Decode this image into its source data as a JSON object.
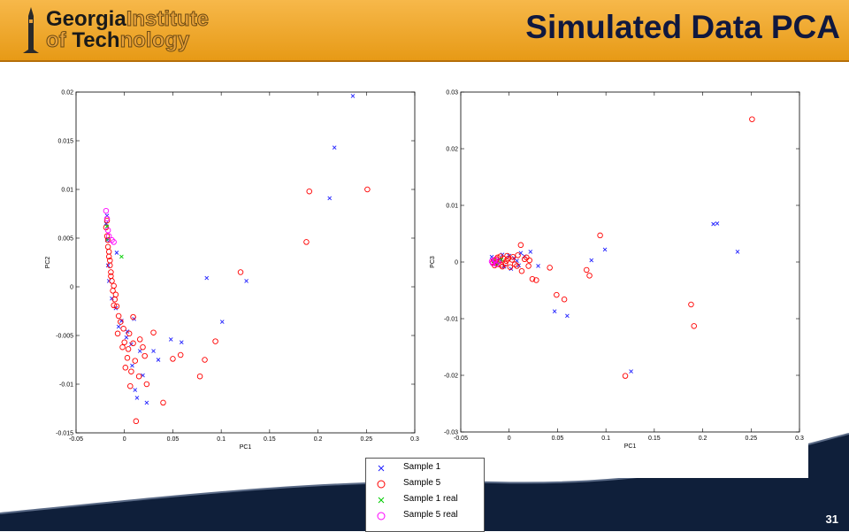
{
  "slide": {
    "title": "Simulated Data PCA",
    "page_number": "31",
    "logo": {
      "line1_strong": "Georgia",
      "line1_light": "Institute",
      "line2_light_a": "of ",
      "line2_strong": "Tech",
      "line2_light_b": "nology"
    }
  },
  "colors": {
    "header": "#f0a830",
    "title": "#10183f",
    "footer": "#0f1f3a",
    "sample1": "#2020ff",
    "sample5": "#ff0000",
    "sample1_real": "#00cc00",
    "sample5_real": "#ff00ff"
  },
  "legend": {
    "items": [
      {
        "label": "Sample 1",
        "marker": "x",
        "color": "#2020ff"
      },
      {
        "label": "Sample 5",
        "marker": "o",
        "color": "#ff0000"
      },
      {
        "label": "Sample 1 real",
        "marker": "x",
        "color": "#00cc00"
      },
      {
        "label": "Sample 5 real",
        "marker": "o",
        "color": "#ff00ff"
      }
    ]
  },
  "chart_data": [
    {
      "type": "scatter",
      "xlabel": "PC1",
      "ylabel": "PC2",
      "xlim": [
        -0.05,
        0.3
      ],
      "ylim": [
        -0.015,
        0.02
      ],
      "xticks": [
        "-0.05",
        "0",
        "0.05",
        "0.1",
        "0.15",
        "0.2",
        "0.25",
        "0.3"
      ],
      "yticks": [
        "-0.015",
        "-0.01",
        "-0.005",
        "0",
        "0.005",
        "0.01",
        "0.015",
        "0.02"
      ],
      "series": [
        {
          "name": "Sample 1",
          "marker": "x",
          "color": "#2020ff",
          "points": [
            [
              0.236,
              0.0196
            ],
            [
              0.217,
              0.0143
            ],
            [
              0.212,
              0.0091
            ],
            [
              0.085,
              0.0009
            ],
            [
              0.126,
              0.0006
            ],
            [
              0.101,
              -0.0036
            ],
            [
              0.048,
              -0.0054
            ],
            [
              0.059,
              -0.0057
            ],
            [
              0.03,
              -0.0066
            ],
            [
              0.035,
              -0.0075
            ],
            [
              0.023,
              -0.0119
            ],
            [
              0.013,
              -0.0114
            ],
            [
              0.011,
              -0.0106
            ],
            [
              0.01,
              -0.0033
            ],
            [
              0.019,
              -0.0091
            ],
            [
              0.003,
              -0.0046
            ],
            [
              -0.003,
              -0.0035
            ],
            [
              -0.009,
              -0.0022
            ],
            [
              -0.013,
              -0.0012
            ],
            [
              -0.016,
              0.0006
            ],
            [
              -0.017,
              0.0022
            ],
            [
              -0.018,
              0.0048
            ],
            [
              -0.019,
              0.0065
            ],
            [
              -0.018,
              0.0073
            ],
            [
              -0.008,
              0.0035
            ],
            [
              -0.006,
              -0.0041
            ],
            [
              0.002,
              -0.0052
            ],
            [
              0.007,
              -0.0059
            ],
            [
              0.016,
              -0.0066
            ],
            [
              0.008,
              -0.0081
            ]
          ]
        },
        {
          "name": "Sample 5",
          "marker": "o",
          "color": "#ff0000",
          "points": [
            [
              0.251,
              0.01
            ],
            [
              0.191,
              0.0098
            ],
            [
              0.188,
              0.0046
            ],
            [
              0.12,
              0.0015
            ],
            [
              0.094,
              -0.0056
            ],
            [
              0.083,
              -0.0075
            ],
            [
              0.078,
              -0.0092
            ],
            [
              0.058,
              -0.007
            ],
            [
              0.05,
              -0.0074
            ],
            [
              0.04,
              -0.0119
            ],
            [
              0.03,
              -0.0047
            ],
            [
              0.023,
              -0.01
            ],
            [
              0.021,
              -0.0071
            ],
            [
              0.019,
              -0.0062
            ],
            [
              0.015,
              -0.0092
            ],
            [
              0.012,
              -0.0138
            ],
            [
              0.011,
              -0.0076
            ],
            [
              0.009,
              -0.0058
            ],
            [
              0.007,
              -0.0087
            ],
            [
              0.006,
              -0.0102
            ],
            [
              0.005,
              -0.0048
            ],
            [
              0.004,
              -0.0064
            ],
            [
              0.003,
              -0.0073
            ],
            [
              0.001,
              -0.0083
            ],
            [
              0.0,
              -0.0057
            ],
            [
              -0.001,
              -0.0043
            ],
            [
              -0.002,
              -0.0062
            ],
            [
              -0.004,
              -0.0036
            ],
            [
              -0.006,
              -0.003
            ],
            [
              -0.008,
              -0.002
            ],
            [
              -0.009,
              -0.0008
            ],
            [
              -0.01,
              -0.0013
            ],
            [
              -0.011,
              0.0001
            ],
            [
              -0.012,
              -0.0004
            ],
            [
              -0.013,
              0.0006
            ],
            [
              -0.014,
              0.0015
            ],
            [
              -0.015,
              0.0022
            ],
            [
              -0.016,
              0.0031
            ],
            [
              -0.017,
              0.0041
            ],
            [
              -0.018,
              0.0052
            ],
            [
              -0.019,
              0.0061
            ],
            [
              -0.018,
              0.0068
            ],
            [
              -0.017,
              0.0048
            ],
            [
              -0.016,
              0.0036
            ],
            [
              -0.015,
              0.0027
            ],
            [
              -0.014,
              0.0011
            ],
            [
              -0.011,
              -0.0019
            ],
            [
              -0.007,
              -0.0048
            ],
            [
              0.009,
              -0.0031
            ],
            [
              0.016,
              -0.0054
            ]
          ]
        },
        {
          "name": "Sample 1 real",
          "marker": "x",
          "color": "#00cc00",
          "points": [
            [
              -0.003,
              0.0031
            ],
            [
              -0.018,
              0.0062
            ],
            [
              -0.017,
              0.0049
            ]
          ]
        },
        {
          "name": "Sample 5 real",
          "marker": "o",
          "color": "#ff00ff",
          "points": [
            [
              -0.019,
              0.0078
            ],
            [
              -0.018,
              0.007
            ],
            [
              -0.017,
              0.0058
            ],
            [
              -0.013,
              0.0048
            ],
            [
              -0.011,
              0.0046
            ],
            [
              -0.016,
              0.0052
            ]
          ]
        }
      ]
    },
    {
      "type": "scatter",
      "xlabel": "PC1",
      "ylabel": "PC3",
      "xlim": [
        -0.05,
        0.3
      ],
      "ylim": [
        -0.03,
        0.03
      ],
      "xticks": [
        "-0.05",
        "0",
        "0.05",
        "0.1",
        "0.15",
        "0.2",
        "0.25",
        "0.3"
      ],
      "yticks": [
        "-0.03",
        "-0.02",
        "-0.01",
        "0",
        "0.01",
        "0.02",
        "0.03"
      ],
      "series": [
        {
          "name": "Sample 1",
          "marker": "x",
          "color": "#2020ff",
          "points": [
            [
              0.215,
              0.0068
            ],
            [
              0.211,
              0.0067
            ],
            [
              0.236,
              0.0018
            ],
            [
              0.126,
              -0.0193
            ],
            [
              0.099,
              0.0022
            ],
            [
              0.085,
              0.0003
            ],
            [
              0.06,
              -0.0095
            ],
            [
              0.047,
              -0.0087
            ],
            [
              0.03,
              -0.0007
            ],
            [
              0.022,
              0.0018
            ],
            [
              0.016,
              0.001
            ],
            [
              0.01,
              -0.0006
            ],
            [
              0.005,
              0.0007
            ],
            [
              0.0,
              0.0011
            ],
            [
              -0.005,
              -0.0008
            ],
            [
              -0.01,
              0.0004
            ],
            [
              -0.014,
              -0.0003
            ],
            [
              -0.018,
              0.0009
            ],
            [
              0.002,
              -0.0012
            ],
            [
              0.012,
              0.0016
            ],
            [
              -0.007,
              0.0013
            ],
            [
              0.008,
              0.0002
            ]
          ]
        },
        {
          "name": "Sample 5",
          "marker": "o",
          "color": "#ff0000",
          "points": [
            [
              0.251,
              0.0252
            ],
            [
              0.094,
              0.0047
            ],
            [
              0.188,
              -0.0075
            ],
            [
              0.191,
              -0.0113
            ],
            [
              0.12,
              -0.0201
            ],
            [
              0.083,
              -0.0024
            ],
            [
              0.08,
              -0.0014
            ],
            [
              0.057,
              -0.0066
            ],
            [
              0.049,
              -0.0058
            ],
            [
              0.042,
              -0.001
            ],
            [
              0.028,
              -0.0032
            ],
            [
              0.024,
              -0.003
            ],
            [
              0.02,
              -0.0007
            ],
            [
              0.016,
              0.0005
            ],
            [
              0.013,
              -0.0016
            ],
            [
              0.012,
              0.003
            ],
            [
              0.009,
              0.0012
            ],
            [
              0.006,
              -0.0004
            ],
            [
              0.003,
              0.0004
            ],
            [
              0.001,
              -0.0009
            ],
            [
              -0.002,
              0.0011
            ],
            [
              -0.004,
              -0.0003
            ],
            [
              -0.006,
              0.0006
            ],
            [
              -0.008,
              -0.0005
            ],
            [
              -0.01,
              0.0002
            ],
            [
              -0.012,
              0.0008
            ],
            [
              -0.014,
              -0.0002
            ],
            [
              -0.016,
              0.0003
            ],
            [
              -0.015,
              -0.0006
            ],
            [
              -0.013,
              0.0005
            ],
            [
              -0.011,
              -0.0004
            ],
            [
              -0.009,
              0.001
            ],
            [
              -0.007,
              -0.0008
            ],
            [
              -0.003,
              0.0002
            ],
            [
              0.004,
              0.0009
            ],
            [
              0.008,
              -0.0007
            ],
            [
              0.018,
              0.0008
            ],
            [
              0.021,
              0.0003
            ],
            [
              -0.017,
              -0.0001
            ],
            [
              -0.001,
              0.0006
            ]
          ]
        },
        {
          "name": "Sample 1 real",
          "marker": "x",
          "color": "#00cc00",
          "points": [
            [
              -0.016,
              0.0002
            ],
            [
              -0.012,
              -0.0003
            ],
            [
              -0.008,
              0.0004
            ]
          ]
        },
        {
          "name": "Sample 5 real",
          "marker": "o",
          "color": "#ff00ff",
          "points": [
            [
              -0.017,
              -0.0002
            ],
            [
              -0.015,
              0.0004
            ],
            [
              -0.013,
              -0.0004
            ],
            [
              -0.011,
              0.0001
            ],
            [
              -0.018,
              0.0001
            ]
          ]
        }
      ]
    }
  ]
}
